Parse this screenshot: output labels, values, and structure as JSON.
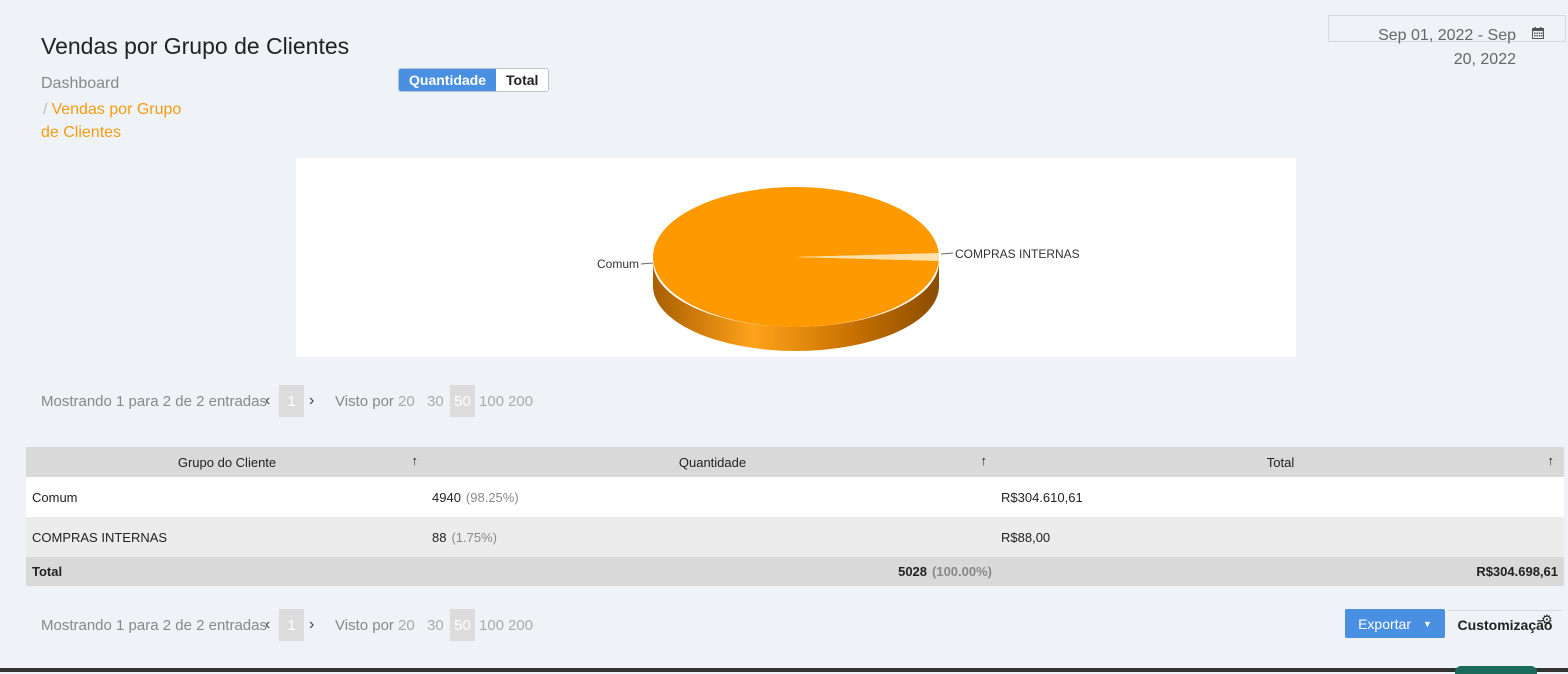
{
  "header": {
    "title": "Vendas por Grupo de Clientes",
    "breadcrumb_root": "Dashboard",
    "breadcrumb_sep": "/",
    "breadcrumb_current": "Vendas por Grupo de Clientes"
  },
  "toggle": {
    "quantity_label": "Quantidade",
    "total_label": "Total",
    "active": "Quantidade"
  },
  "date_range": {
    "value": "Sep 01, 2022 - Sep 20, 2022",
    "icon": "calendar-icon"
  },
  "chart_data": {
    "type": "pie",
    "categories": [
      "Comum",
      "COMPRAS INTERNAS"
    ],
    "values": [
      4940,
      88
    ],
    "colors": [
      "#ff9900",
      "#ffe0a8"
    ],
    "style": "3d"
  },
  "pager": {
    "info": "Mostrando 1 para 2 de 2 entradas",
    "prev": "‹",
    "next": "›",
    "current_page": "1",
    "per_page_label": "Visto por",
    "per_page_options": [
      "20",
      "30",
      "50",
      "100",
      "200"
    ],
    "per_page_selected": "50"
  },
  "table": {
    "columns": [
      "Grupo do Cliente",
      "Quantidade",
      "Total"
    ],
    "sort_arrow": "↑",
    "rows": [
      {
        "grupo": "Comum",
        "quantidade": "4940",
        "pct": "(98.25%)",
        "total": "R$304.610,61"
      },
      {
        "grupo": "COMPRAS INTERNAS",
        "quantidade": "88",
        "pct": "(1.75%)",
        "total": "R$88,00"
      }
    ],
    "footer": {
      "label": "Total",
      "quantidade": "5028",
      "pct": "(100.00%)",
      "total": "R$304.698,61"
    }
  },
  "actions": {
    "export_label": "Exportar",
    "export_caret": "▼",
    "custom_label": "Customização",
    "custom_icon": "gear-icon"
  }
}
